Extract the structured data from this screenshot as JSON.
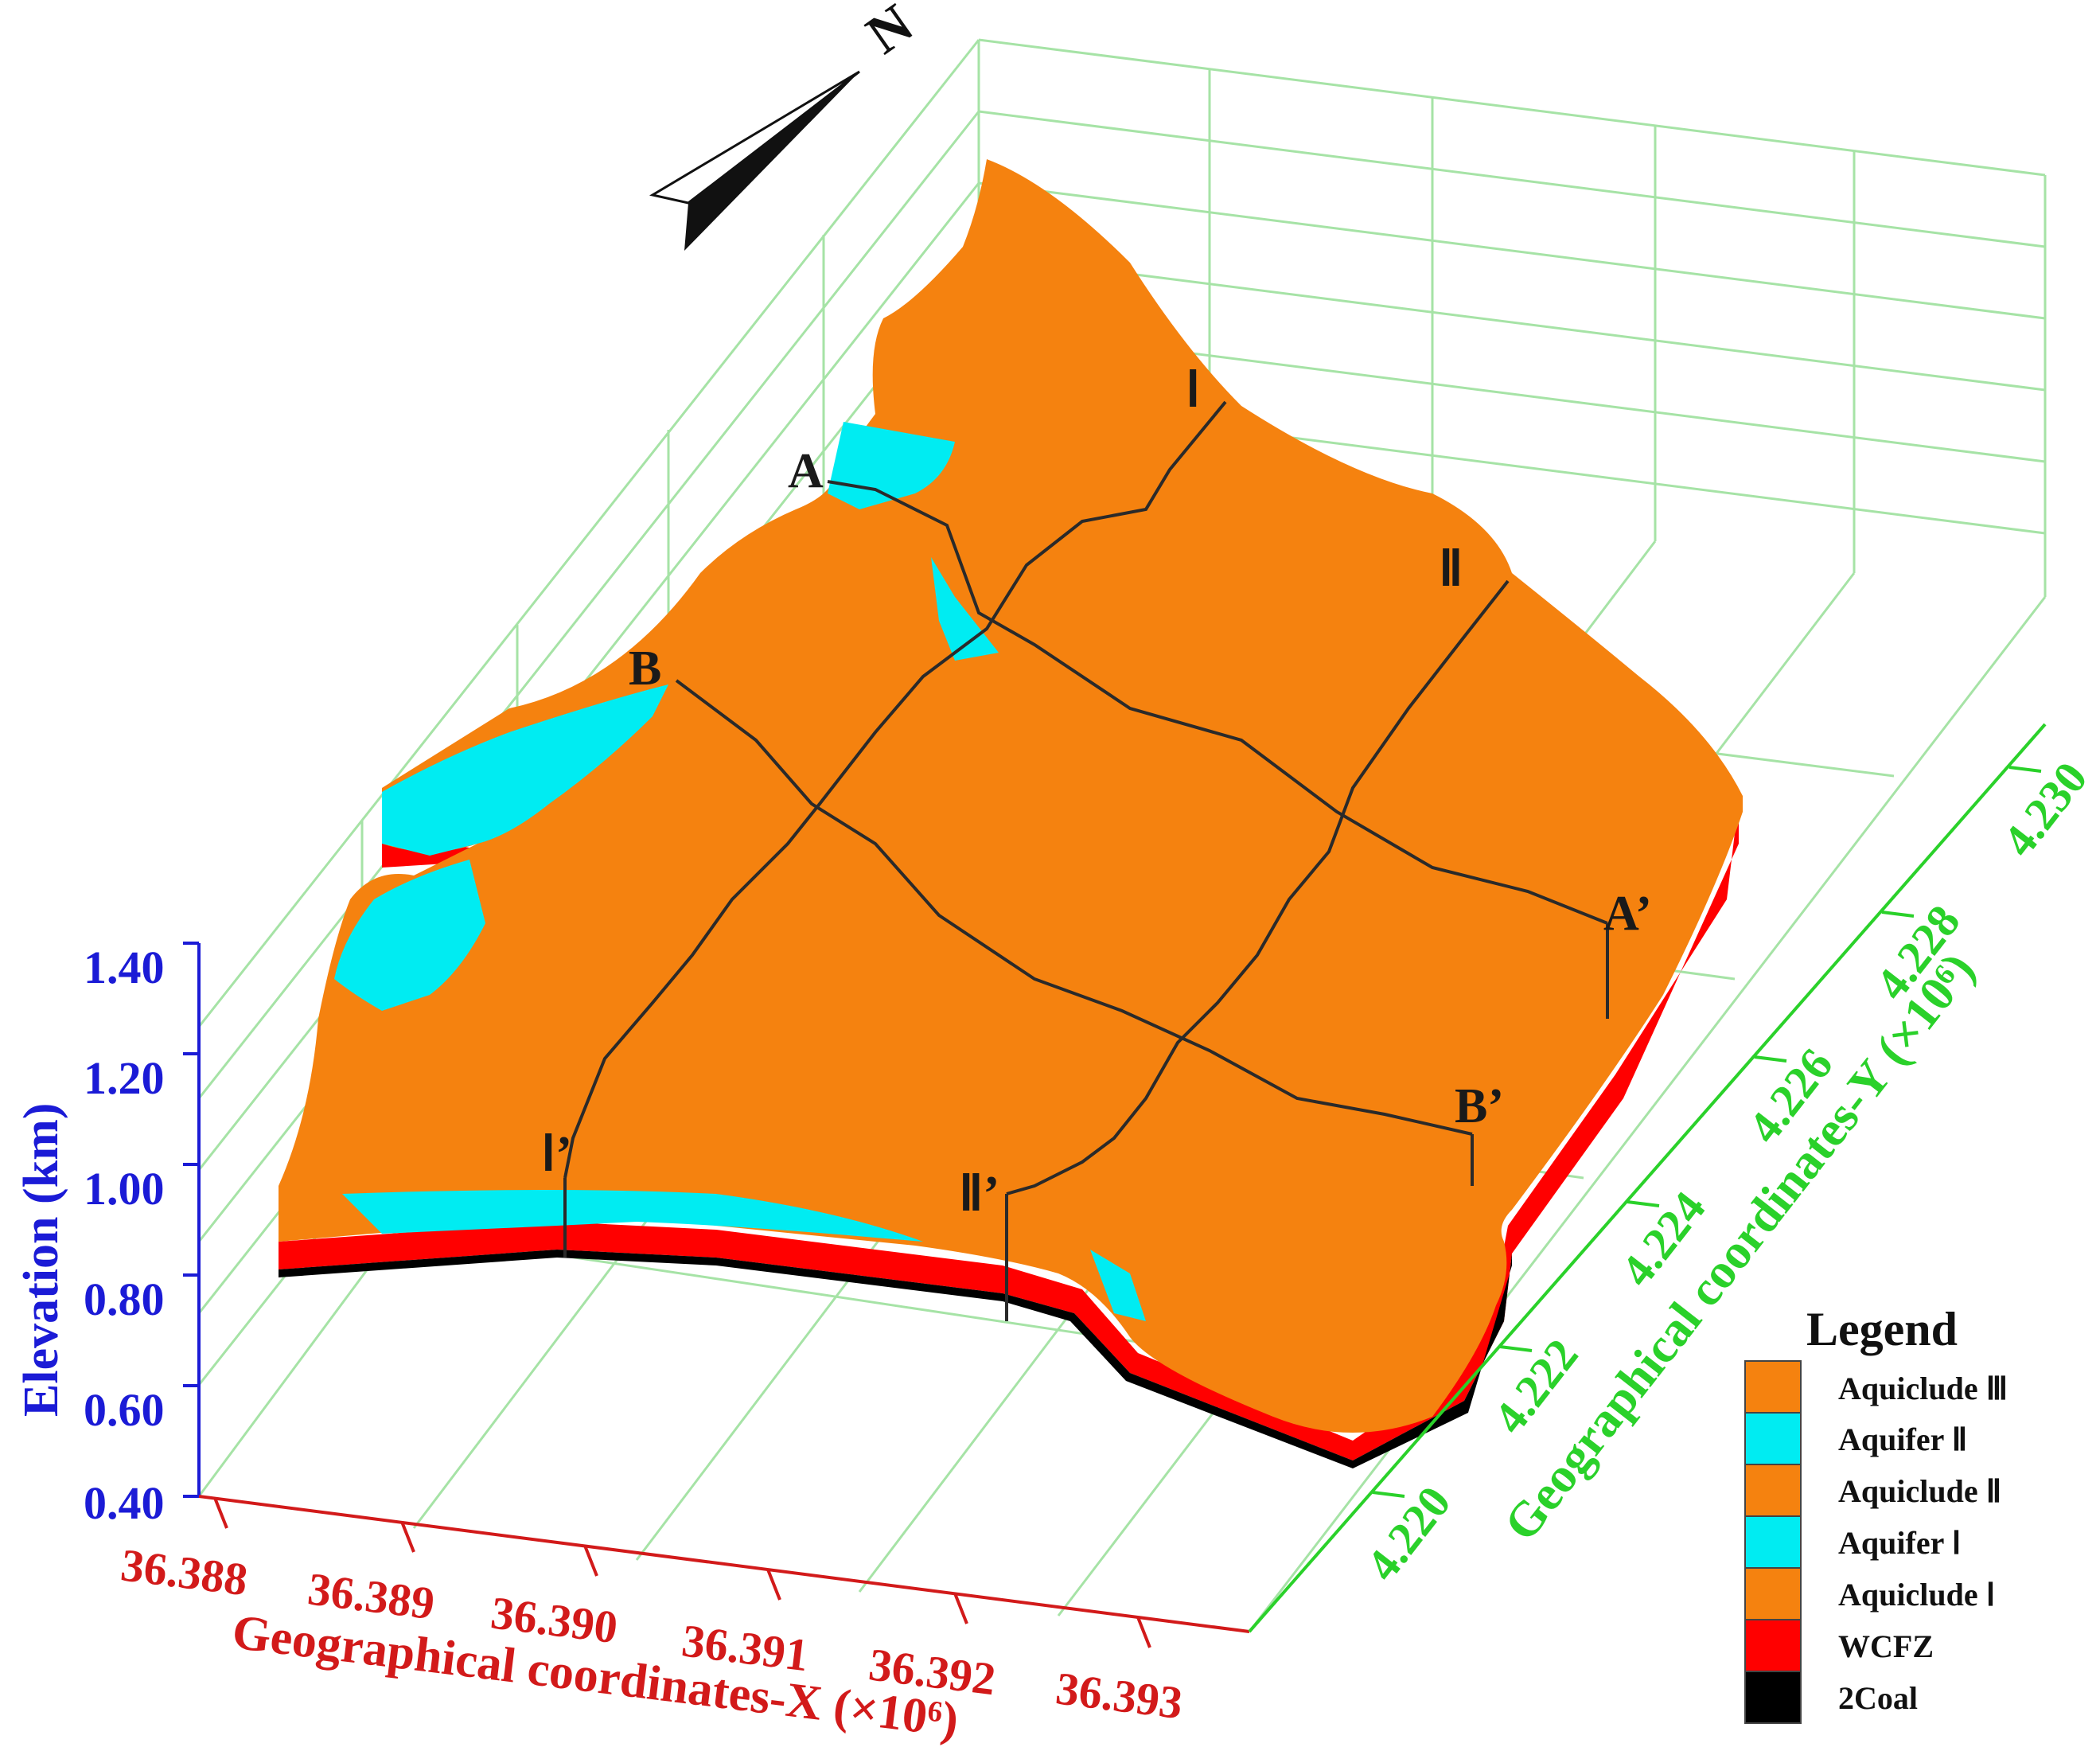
{
  "north_label": "N",
  "elevation_axis": {
    "title": "Elevation (km)",
    "ticks": [
      "1.40",
      "1.20",
      "1.00",
      "0.80",
      "0.60",
      "0.40"
    ],
    "color": "#1b1bd6"
  },
  "x_axis": {
    "title": "Geographical coordinates-X (×10⁶)",
    "ticks": [
      "36.388",
      "36.389",
      "36.390",
      "36.391",
      "36.392",
      "36.393"
    ],
    "color": "#d21a1a"
  },
  "y_axis": {
    "title": "Geographical coordinates-Y (×10⁶)",
    "ticks": [
      "4.220",
      "4.222",
      "4.224",
      "4.226",
      "4.228",
      "4.230"
    ],
    "color": "#2ad12a"
  },
  "section_labels": {
    "A": "A",
    "A_end": "A’",
    "B": "B",
    "B_end": "B’",
    "I": "Ⅰ",
    "I_end": "Ⅰ’",
    "II": "Ⅱ",
    "II_end": "Ⅱ’"
  },
  "legend": {
    "title": "Legend",
    "items": [
      {
        "label": "Aquiclude Ⅲ",
        "color": "#f5820f"
      },
      {
        "label": "Aquifer Ⅱ",
        "color": "#00ecf2"
      },
      {
        "label": "Aquiclude Ⅱ",
        "color": "#f5820f"
      },
      {
        "label": "Aquifer Ⅰ",
        "color": "#00ecf2"
      },
      {
        "label": "Aquiclude Ⅰ",
        "color": "#f5820f"
      },
      {
        "label": "WCFZ",
        "color": "#ff0000"
      },
      {
        "label": "2Coal",
        "color": "#000000"
      }
    ]
  },
  "colors": {
    "grid": "#a6e3a6",
    "orange": "#f5820f",
    "cyan": "#00ecf2",
    "red": "#ff0000",
    "section_line": "#2a2a2a"
  }
}
